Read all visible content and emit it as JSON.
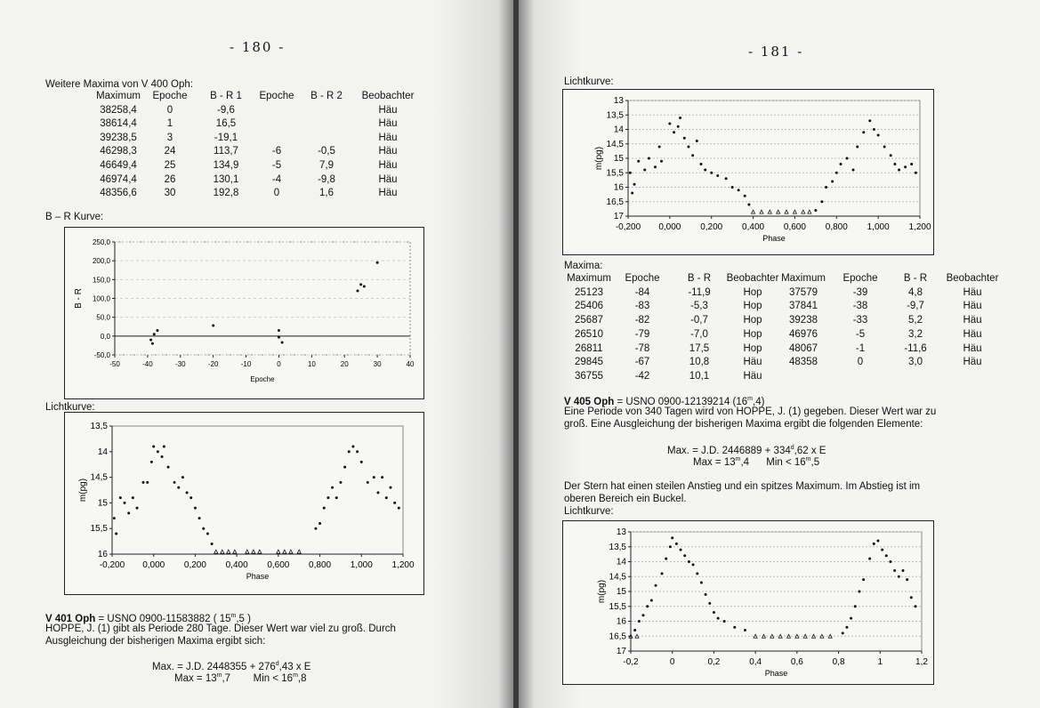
{
  "left_page": {
    "page_number": "- 180 -",
    "table_title": "Weitere Maxima von V 400 Oph:",
    "table": {
      "headers": [
        "Maximum",
        "Epoche",
        "B - R 1",
        "Epoche",
        "B - R 2",
        "Beobachter"
      ],
      "rows": [
        [
          "38258,4",
          "0",
          "-9,6",
          "",
          "",
          "Häu"
        ],
        [
          "38614,4",
          "1",
          "16,5",
          "",
          "",
          "Häu"
        ],
        [
          "39238,5",
          "3",
          "-19,1",
          "",
          "",
          "Häu"
        ],
        [
          "46298,3",
          "24",
          "113,7",
          "-6",
          "-0,5",
          "Häu"
        ],
        [
          "46649,4",
          "25",
          "134,9",
          "-5",
          "7,9",
          "Häu"
        ],
        [
          "46974,4",
          "26",
          "130,1",
          "-4",
          "-9,8",
          "Häu"
        ],
        [
          "48356,6",
          "30",
          "192,8",
          "0",
          "1,6",
          "Häu"
        ]
      ]
    },
    "br_label": "B – R Kurve:",
    "lc_label": "Lichtkurve:",
    "v401": {
      "name": "V 401 Oph",
      "ident": " = USNO 0900-11583882     ( 15",
      "sup": "m",
      "mag_end": ",5 )",
      "text1": "HOPPE, J. (1) gibt als Periode 280 Tage. Dieser Wert war viel zu groß. Durch",
      "text2": "Ausgleichung der bisherigen Maxima ergibt sich:",
      "formula_a": "Max. = J.D. 2448355   +   276",
      "formula_sup": "d",
      "formula_b": ",43   x   E",
      "max_a": "Max = 13",
      "max_b": ",7",
      "min_a": "Min < 16",
      "min_b": ",8"
    }
  },
  "right_page": {
    "page_number": "- 181 -",
    "lc_label_top": "Lichtkurve:",
    "maxima_label": "Maxima:",
    "table": {
      "headers": [
        "Maximum",
        "Epoche",
        "B - R",
        "Beobachter",
        "Maximum",
        "Epoche",
        "B - R",
        "Beobachter"
      ],
      "rows": [
        [
          "25123",
          "-84",
          "-11,9",
          "Hop",
          "37579",
          "-39",
          "4,8",
          "Häu"
        ],
        [
          "25406",
          "-83",
          "-5,3",
          "Hop",
          "37841",
          "-38",
          "-9,7",
          "Häu"
        ],
        [
          "25687",
          "-82",
          "-0,7",
          "Hop",
          "39238",
          "-33",
          "5,2",
          "Häu"
        ],
        [
          "26510",
          "-79",
          "-7,0",
          "Hop",
          "46976",
          "-5",
          "3,2",
          "Häu"
        ],
        [
          "26811",
          "-78",
          "17,5",
          "Hop",
          "48067",
          "-1",
          "-11,6",
          "Häu"
        ],
        [
          "29845",
          "-67",
          "10,8",
          "Häu",
          "48358",
          "0",
          "3,0",
          "Häu"
        ],
        [
          "36755",
          "-42",
          "10,1",
          "Häu",
          "",
          "",
          "",
          ""
        ]
      ]
    },
    "v405": {
      "name": "V 405 Oph",
      "ident": " = USNO 0900-12139214        (16",
      "sup": "m",
      "mag_end": ",4)",
      "text1": "Eine Periode von 340 Tagen wird von HOPPE, J. (1) gegeben. Dieser Wert war zu",
      "text2": "groß. Eine Ausgleichung der bisherigen Maxima ergibt die folgenden Elemente:",
      "formula_a": "Max. = J.D. 2446889   +   334",
      "formula_sup": "d",
      "formula_b": ",62   x   E",
      "max_a": "Max = 13",
      "max_b": ",4",
      "min_a": "Min < 16",
      "min_b": ",5",
      "text3": "Der Stern hat einen steilen Anstieg und ein spitzes Maximum. Im Abstieg ist im",
      "text4": "oberen Bereich ein Buckel.",
      "text5": "Lichtkurve:"
    }
  },
  "chart_data": [
    {
      "id": "br",
      "type": "scatter",
      "xlabel": "Epoche",
      "ylabel": "B - R",
      "xlim": [
        -50,
        40
      ],
      "ylim": [
        -50,
        250
      ],
      "xticks": [
        "-50",
        "-40",
        "-30",
        "-20",
        "-10",
        "0",
        "10",
        "20",
        "30",
        "40"
      ],
      "xtick_values": [
        -50,
        -40,
        -30,
        -20,
        -10,
        0,
        10,
        20,
        30,
        40
      ],
      "yticks": [
        "250,0",
        "200,0",
        "150,0",
        "100,0",
        "50,0",
        "0,0",
        "-50,0"
      ],
      "ytick_values": [
        250,
        200,
        150,
        100,
        50,
        0,
        -50
      ],
      "grid": "horizontal-dashed",
      "points": [
        [
          -39,
          -10
        ],
        [
          -38.5,
          -20
        ],
        [
          -38,
          5
        ],
        [
          -37,
          15
        ],
        [
          -20,
          28
        ],
        [
          0,
          15
        ],
        [
          0,
          -3
        ],
        [
          1,
          -17
        ],
        [
          24,
          120
        ],
        [
          25,
          137
        ],
        [
          26,
          132
        ],
        [
          30,
          195
        ]
      ]
    },
    {
      "id": "lc1",
      "type": "scatter",
      "xlabel": "Phase",
      "ylabel": "m(pg)",
      "xlim": [
        -0.2,
        1.2
      ],
      "ylim": [
        16,
        13.5
      ],
      "y_inverted": true,
      "xticks": [
        "-0,200",
        "0,000",
        "0,200",
        "0,400",
        "0,600",
        "0,800",
        "1,000",
        "1,200"
      ],
      "xtick_values": [
        -0.2,
        0,
        0.2,
        0.4,
        0.6,
        0.8,
        1.0,
        1.2
      ],
      "yticks": [
        "13,5",
        "14",
        "14,5",
        "15",
        "15,5",
        "16"
      ],
      "ytick_values": [
        13.5,
        14,
        14.5,
        15,
        15.5,
        16
      ],
      "points": [
        [
          -0.19,
          15.3
        ],
        [
          -0.18,
          15.6
        ],
        [
          -0.16,
          14.9
        ],
        [
          -0.14,
          15.0
        ],
        [
          -0.12,
          15.2
        ],
        [
          -0.1,
          14.9
        ],
        [
          -0.08,
          15.1
        ],
        [
          -0.05,
          14.6
        ],
        [
          -0.03,
          14.6
        ],
        [
          -0.01,
          14.2
        ],
        [
          0.0,
          13.9
        ],
        [
          0.02,
          14.0
        ],
        [
          0.04,
          14.1
        ],
        [
          0.05,
          13.9
        ],
        [
          0.07,
          14.3
        ],
        [
          0.1,
          14.6
        ],
        [
          0.12,
          14.7
        ],
        [
          0.14,
          14.5
        ],
        [
          0.16,
          14.8
        ],
        [
          0.18,
          14.9
        ],
        [
          0.2,
          15.1
        ],
        [
          0.22,
          15.3
        ],
        [
          0.24,
          15.5
        ],
        [
          0.26,
          15.6
        ],
        [
          0.28,
          15.8
        ],
        [
          0.78,
          15.5
        ],
        [
          0.8,
          15.4
        ],
        [
          0.82,
          15.1
        ],
        [
          0.84,
          14.9
        ],
        [
          0.86,
          14.7
        ],
        [
          0.88,
          14.9
        ],
        [
          0.9,
          14.6
        ],
        [
          0.92,
          14.3
        ],
        [
          0.94,
          14.0
        ],
        [
          0.96,
          13.9
        ],
        [
          0.98,
          14.0
        ],
        [
          1.0,
          14.2
        ],
        [
          1.03,
          14.6
        ],
        [
          1.06,
          14.5
        ],
        [
          1.08,
          14.8
        ],
        [
          1.1,
          14.5
        ],
        [
          1.12,
          14.9
        ],
        [
          1.14,
          14.7
        ],
        [
          1.16,
          15.0
        ],
        [
          1.18,
          15.1
        ]
      ],
      "limits": [
        [
          0.3,
          15.95
        ],
        [
          0.33,
          15.95
        ],
        [
          0.36,
          15.95
        ],
        [
          0.39,
          15.95
        ],
        [
          0.45,
          15.95
        ],
        [
          0.48,
          15.95
        ],
        [
          0.51,
          15.95
        ],
        [
          0.6,
          15.95
        ],
        [
          0.63,
          15.95
        ],
        [
          0.66,
          15.95
        ],
        [
          0.7,
          15.95
        ]
      ]
    },
    {
      "id": "lc2",
      "type": "scatter",
      "xlabel": "Phase",
      "ylabel": "m(pg)",
      "xlim": [
        -0.2,
        1.2
      ],
      "ylim": [
        17,
        13
      ],
      "y_inverted": true,
      "xticks": [
        "-0,200",
        "0,000",
        "0,200",
        "0,400",
        "0,600",
        "0,800",
        "1,000",
        "1,200"
      ],
      "xtick_values": [
        -0.2,
        0,
        0.2,
        0.4,
        0.6,
        0.8,
        1.0,
        1.2
      ],
      "yticks": [
        "13",
        "13,5",
        "14",
        "14,5",
        "15",
        "15,5",
        "16",
        "16,5",
        "17"
      ],
      "ytick_values": [
        13,
        13.5,
        14,
        14.5,
        15,
        15.5,
        16,
        16.5,
        17
      ],
      "points": [
        [
          -0.19,
          15.5
        ],
        [
          -0.18,
          16.2
        ],
        [
          -0.17,
          15.9
        ],
        [
          -0.15,
          15.1
        ],
        [
          -0.12,
          15.4
        ],
        [
          -0.1,
          15.0
        ],
        [
          -0.07,
          15.3
        ],
        [
          -0.05,
          14.6
        ],
        [
          -0.04,
          15.1
        ],
        [
          0.0,
          13.8
        ],
        [
          0.02,
          14.1
        ],
        [
          0.04,
          13.9
        ],
        [
          0.05,
          13.6
        ],
        [
          0.07,
          14.3
        ],
        [
          0.09,
          14.6
        ],
        [
          0.11,
          14.9
        ],
        [
          0.13,
          14.4
        ],
        [
          0.15,
          15.2
        ],
        [
          0.17,
          15.4
        ],
        [
          0.2,
          15.5
        ],
        [
          0.23,
          15.6
        ],
        [
          0.27,
          15.7
        ],
        [
          0.3,
          16.0
        ],
        [
          0.33,
          16.1
        ],
        [
          0.36,
          16.3
        ],
        [
          0.38,
          16.6
        ],
        [
          0.7,
          16.8
        ],
        [
          0.73,
          16.5
        ],
        [
          0.75,
          16.0
        ],
        [
          0.78,
          15.8
        ],
        [
          0.8,
          15.5
        ],
        [
          0.82,
          15.2
        ],
        [
          0.85,
          15.0
        ],
        [
          0.88,
          15.4
        ],
        [
          0.9,
          14.6
        ],
        [
          0.93,
          14.1
        ],
        [
          0.96,
          13.7
        ],
        [
          0.98,
          14.0
        ],
        [
          1.0,
          14.2
        ],
        [
          1.03,
          14.6
        ],
        [
          1.06,
          14.9
        ],
        [
          1.08,
          15.2
        ],
        [
          1.1,
          15.4
        ],
        [
          1.13,
          15.3
        ],
        [
          1.16,
          15.2
        ],
        [
          1.18,
          15.5
        ]
      ],
      "limits": [
        [
          0.4,
          16.85
        ],
        [
          0.44,
          16.85
        ],
        [
          0.48,
          16.85
        ],
        [
          0.52,
          16.85
        ],
        [
          0.56,
          16.85
        ],
        [
          0.6,
          16.85
        ],
        [
          0.64,
          16.85
        ],
        [
          0.67,
          16.85
        ]
      ]
    },
    {
      "id": "lc3",
      "type": "scatter",
      "xlabel": "Phase",
      "ylabel": "m(pg)",
      "xlim": [
        -0.2,
        1.2
      ],
      "ylim": [
        17,
        13
      ],
      "y_inverted": true,
      "xticks": [
        "-0,2",
        "0",
        "0,2",
        "0,4",
        "0,6",
        "0,8",
        "1",
        "1,2"
      ],
      "xtick_values": [
        -0.2,
        0,
        0.2,
        0.4,
        0.6,
        0.8,
        1.0,
        1.2
      ],
      "yticks": [
        "13",
        "13,5",
        "14",
        "14,5",
        "15",
        "15,5",
        "16",
        "16,5",
        "17"
      ],
      "ytick_values": [
        13,
        13.5,
        14,
        14.5,
        15,
        15.5,
        16,
        16.5,
        17
      ],
      "points": [
        [
          -0.18,
          16.3
        ],
        [
          -0.16,
          16.0
        ],
        [
          -0.14,
          15.8
        ],
        [
          -0.12,
          15.5
        ],
        [
          -0.1,
          15.3
        ],
        [
          -0.08,
          14.8
        ],
        [
          -0.05,
          14.4
        ],
        [
          -0.03,
          13.9
        ],
        [
          -0.01,
          13.5
        ],
        [
          0.0,
          13.2
        ],
        [
          0.02,
          13.4
        ],
        [
          0.04,
          13.6
        ],
        [
          0.06,
          13.8
        ],
        [
          0.08,
          14.0
        ],
        [
          0.1,
          14.1
        ],
        [
          0.12,
          14.4
        ],
        [
          0.14,
          14.7
        ],
        [
          0.16,
          15.1
        ],
        [
          0.18,
          15.4
        ],
        [
          0.2,
          15.7
        ],
        [
          0.22,
          15.9
        ],
        [
          0.25,
          16.0
        ],
        [
          0.3,
          16.2
        ],
        [
          0.35,
          16.3
        ],
        [
          0.82,
          16.4
        ],
        [
          0.84,
          16.2
        ],
        [
          0.86,
          15.9
        ],
        [
          0.88,
          15.5
        ],
        [
          0.9,
          15.0
        ],
        [
          0.92,
          14.6
        ],
        [
          0.95,
          13.9
        ],
        [
          0.97,
          13.4
        ],
        [
          0.99,
          13.3
        ],
        [
          1.01,
          13.6
        ],
        [
          1.03,
          13.8
        ],
        [
          1.05,
          14.0
        ],
        [
          1.07,
          14.3
        ],
        [
          1.09,
          14.5
        ],
        [
          1.11,
          14.3
        ],
        [
          1.13,
          14.6
        ],
        [
          1.15,
          15.2
        ],
        [
          1.17,
          15.5
        ]
      ],
      "limits": [
        [
          -0.2,
          16.5
        ],
        [
          -0.17,
          16.5
        ],
        [
          0.4,
          16.5
        ],
        [
          0.44,
          16.5
        ],
        [
          0.48,
          16.5
        ],
        [
          0.52,
          16.5
        ],
        [
          0.56,
          16.5
        ],
        [
          0.6,
          16.5
        ],
        [
          0.64,
          16.5
        ],
        [
          0.68,
          16.5
        ],
        [
          0.72,
          16.5
        ],
        [
          0.76,
          16.5
        ]
      ]
    }
  ]
}
